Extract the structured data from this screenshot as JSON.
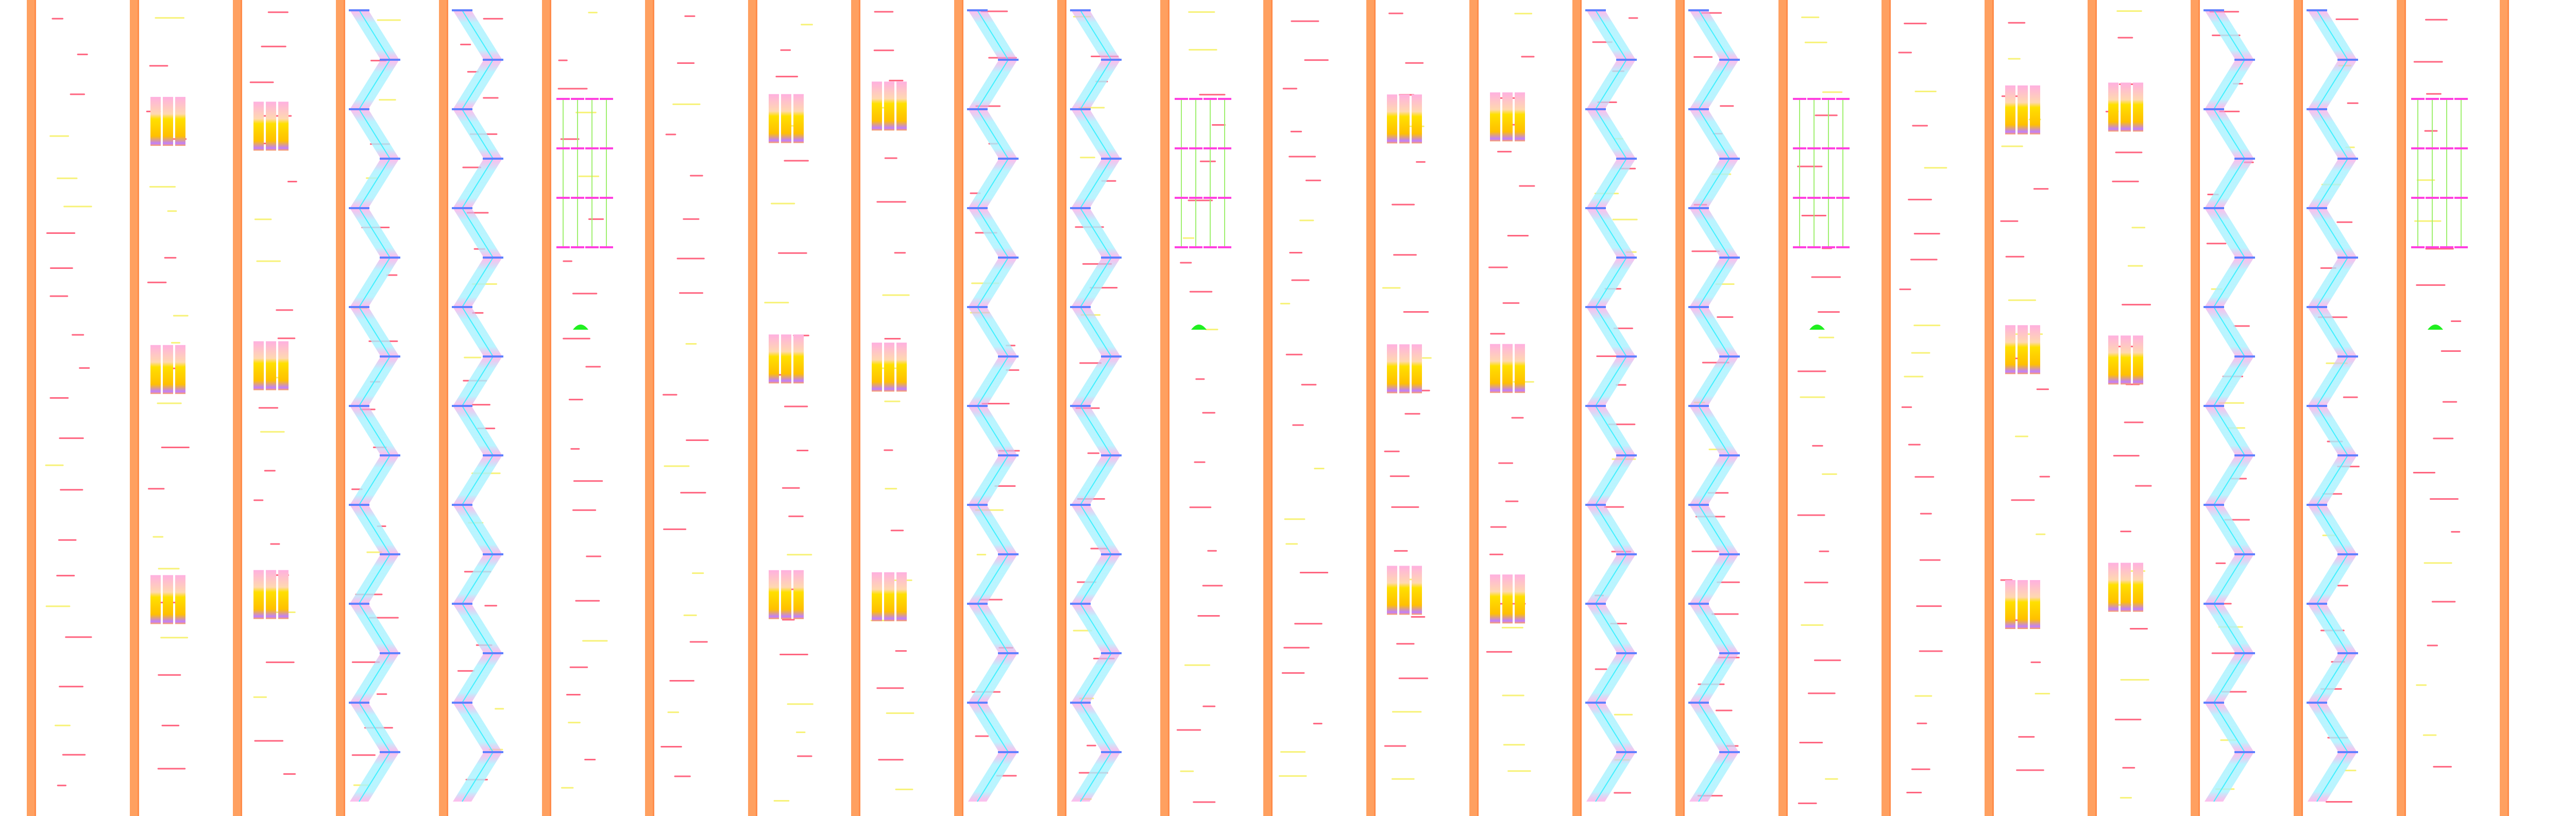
{
  "colors": {
    "rail": "#ffa060",
    "rail_edge": "#ff8c4a",
    "dash_red": "#ff4a6a",
    "dash_yellow": "#f6f060",
    "ribbon_cyan": "#40f0ff",
    "ribbon_light": "#a8f2ff",
    "ribbon_pink": "#ff90e0",
    "rung_blue": "#6080ff",
    "rung_magenta": "#ff40e0",
    "link_green": "#a0f070",
    "blob_green": "#20f020",
    "block_yellow": "#ffd800",
    "block_peach": "#ffd8b0",
    "block_violet": "#c080ff"
  }
}
